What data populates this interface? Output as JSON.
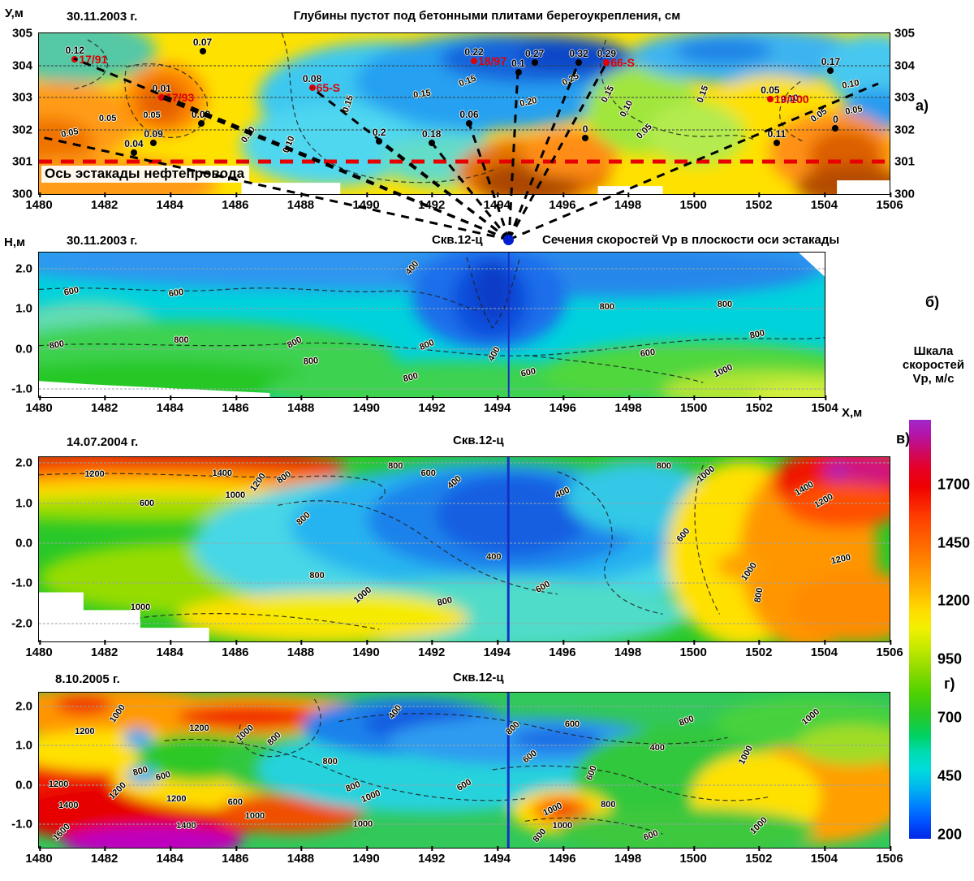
{
  "figure": {
    "colorbar": {
      "title": "Шкала\nскоростей\nVp, м/с",
      "tick_labels": [
        1700,
        1450,
        1200,
        950,
        700,
        450,
        200
      ],
      "top_color": "#a028c8",
      "bottom_color": "#0028e6"
    }
  },
  "chart_data": [
    {
      "type": "contour",
      "marker": "а)",
      "date": "30.11.2003 г.",
      "title": "Глубины пустот под бетонными плитами берегоукрепления, см",
      "ylabel": "У,м",
      "xlim": [
        1480,
        1506
      ],
      "ylim": [
        300,
        305
      ],
      "xticks": [
        1480,
        1482,
        1484,
        1486,
        1488,
        1490,
        1492,
        1494,
        1496,
        1498,
        1500,
        1502,
        1504,
        1506
      ],
      "yticks": [
        305,
        304,
        303,
        302,
        301,
        300
      ],
      "grid_y": [
        304,
        303,
        302
      ],
      "axis_line": {
        "y": 301,
        "label": "Ось эстакады нефтепровода",
        "color": "#e80000"
      },
      "well_point": {
        "name": "Скв.12-ц",
        "x": 1494.35,
        "color": "#0020d0"
      },
      "points": [
        {
          "x": 1481.1,
          "y": 304.2,
          "value": "0.12",
          "well": "17/91",
          "color": "#e00000"
        },
        {
          "x": 1485.0,
          "y": 304.45,
          "value": "0.07"
        },
        {
          "x": 1483.75,
          "y": 303.0,
          "value": "0.01",
          "well": "17/93",
          "color": "#e00000"
        },
        {
          "x": 1488.35,
          "y": 303.3,
          "value": "0.08",
          "well": "65-S",
          "color": "#e00000"
        },
        {
          "x": 1484.95,
          "y": 302.2,
          "value": "0.08"
        },
        {
          "x": 1483.5,
          "y": 301.6,
          "value": "0.09"
        },
        {
          "x": 1482.9,
          "y": 301.3,
          "value": "0.04"
        },
        {
          "x": 1490.4,
          "y": 301.65,
          "value": "0.2"
        },
        {
          "x": 1492.0,
          "y": 301.6,
          "value": "0.18"
        },
        {
          "x": 1493.15,
          "y": 302.2,
          "value": "0.06"
        },
        {
          "x": 1493.3,
          "y": 304.15,
          "value": "0.22",
          "well": "18/97",
          "color": "#e00000"
        },
        {
          "x": 1494.65,
          "y": 303.8,
          "value": "0.1"
        },
        {
          "x": 1495.15,
          "y": 304.1,
          "value": "0.27"
        },
        {
          "x": 1496.5,
          "y": 304.1,
          "value": "0.32"
        },
        {
          "x": 1497.35,
          "y": 304.1,
          "value": "0.29",
          "well": "66-S",
          "color": "#e00000"
        },
        {
          "x": 1496.7,
          "y": 301.75,
          "value": "0"
        },
        {
          "x": 1502.35,
          "y": 302.95,
          "value": "0.05",
          "well": "19/100",
          "color": "#e00000"
        },
        {
          "x": 1504.2,
          "y": 303.85,
          "value": "0.17"
        },
        {
          "x": 1502.55,
          "y": 301.6,
          "value": "0.11"
        },
        {
          "x": 1504.35,
          "y": 302.05,
          "value": "0"
        }
      ],
      "contour_labels": [
        {
          "x": 1482.1,
          "y": 302.35,
          "label": "0.05"
        },
        {
          "x": 1480.95,
          "y": 301.9,
          "label": "0.05",
          "rot": -12
        },
        {
          "x": 1483.45,
          "y": 302.45,
          "label": "0.05"
        },
        {
          "x": 1486.4,
          "y": 301.85,
          "label": "0.10",
          "rot": -55
        },
        {
          "x": 1487.65,
          "y": 301.55,
          "label": "0.10",
          "rot": -68
        },
        {
          "x": 1489.45,
          "y": 302.8,
          "label": "0.15",
          "rot": -72
        },
        {
          "x": 1491.7,
          "y": 303.1,
          "label": "0.15",
          "rot": -8
        },
        {
          "x": 1493.1,
          "y": 303.5,
          "label": "0.15",
          "rot": -20
        },
        {
          "x": 1494.95,
          "y": 302.85,
          "label": "0.20",
          "rot": -12
        },
        {
          "x": 1496.25,
          "y": 303.55,
          "label": "0.25",
          "rot": -28
        },
        {
          "x": 1497.4,
          "y": 303.1,
          "label": "0.15",
          "rot": -62
        },
        {
          "x": 1497.95,
          "y": 302.65,
          "label": "0.10",
          "rot": -62
        },
        {
          "x": 1498.5,
          "y": 301.95,
          "label": "0.05",
          "rot": -45
        },
        {
          "x": 1500.3,
          "y": 303.1,
          "label": "0.15",
          "rot": -70
        },
        {
          "x": 1502.95,
          "y": 302.95,
          "label": "0.10",
          "rot": -8
        },
        {
          "x": 1503.85,
          "y": 302.45,
          "label": "0.05",
          "rot": -35
        },
        {
          "x": 1504.8,
          "y": 303.4,
          "label": "0.10",
          "rot": -10
        },
        {
          "x": 1504.9,
          "y": 302.6,
          "label": "0.05",
          "rot": -10
        }
      ]
    },
    {
      "type": "contour",
      "marker": "б)",
      "date": "30.11.2003 г.",
      "section_title": "Сечения скоростей Vp в плоскости оси эстакады",
      "ylabel": "Н,м",
      "xlabel": "Х,м",
      "well": {
        "name": "Скв.12-ц",
        "x": 1494.35
      },
      "xlim": [
        1480,
        1504
      ],
      "ylim": [
        -1.2,
        2.4
      ],
      "xticks": [
        1480,
        1482,
        1484,
        1486,
        1488,
        1490,
        1492,
        1494,
        1496,
        1498,
        1500,
        1502,
        1504
      ],
      "yticks": [
        "2.0",
        "1.0",
        "0.0",
        "-1.0"
      ],
      "contour_labels": [
        {
          "x": 1481.0,
          "y": 1.42,
          "label": "600",
          "rot": -12
        },
        {
          "x": 1484.2,
          "y": 1.38,
          "label": "600",
          "rot": -8
        },
        {
          "x": 1491.4,
          "y": 2.02,
          "label": "400",
          "rot": -50
        },
        {
          "x": 1480.55,
          "y": 0.1,
          "label": "800",
          "rot": -10
        },
        {
          "x": 1484.35,
          "y": 0.22,
          "label": "800"
        },
        {
          "x": 1487.8,
          "y": 0.15,
          "label": "800",
          "rot": -28
        },
        {
          "x": 1488.3,
          "y": -0.3,
          "label": "800",
          "rot": -5
        },
        {
          "x": 1491.35,
          "y": -0.72,
          "label": "800",
          "rot": -15
        },
        {
          "x": 1491.85,
          "y": 0.1,
          "label": "800",
          "rot": -22
        },
        {
          "x": 1493.9,
          "y": -0.12,
          "label": "400",
          "rot": -60
        },
        {
          "x": 1494.95,
          "y": -0.6,
          "label": "600",
          "rot": -12
        },
        {
          "x": 1497.35,
          "y": 1.05,
          "label": "800"
        },
        {
          "x": 1500.95,
          "y": 1.1,
          "label": "800"
        },
        {
          "x": 1501.95,
          "y": 0.35,
          "label": "800",
          "rot": -12
        },
        {
          "x": 1498.6,
          "y": -0.1,
          "label": "600",
          "rot": -8
        },
        {
          "x": 1500.9,
          "y": -0.55,
          "label": "1000",
          "rot": -25
        }
      ]
    },
    {
      "type": "contour",
      "marker": "в)",
      "date": "14.07.2004 г.",
      "well": {
        "name": "Скв.12-ц",
        "x": 1494.35
      },
      "xlim": [
        1480,
        1506
      ],
      "ylim": [
        -2.45,
        2.15
      ],
      "xticks": [
        1480,
        1482,
        1484,
        1486,
        1488,
        1490,
        1492,
        1494,
        1496,
        1498,
        1500,
        1502,
        1504,
        1506
      ],
      "yticks": [
        "2.0",
        "1.0",
        "0.0",
        "-1.0",
        "-2.0"
      ],
      "contour_labels": [
        {
          "x": 1481.7,
          "y": 1.72,
          "label": "1200"
        },
        {
          "x": 1485.6,
          "y": 1.75,
          "label": "1400"
        },
        {
          "x": 1486.7,
          "y": 1.52,
          "label": "1200",
          "rot": -55
        },
        {
          "x": 1486.0,
          "y": 1.2,
          "label": "1000"
        },
        {
          "x": 1483.3,
          "y": 1.0,
          "label": "600"
        },
        {
          "x": 1487.5,
          "y": 1.65,
          "label": "800",
          "rot": -35
        },
        {
          "x": 1490.9,
          "y": 1.92,
          "label": "800"
        },
        {
          "x": 1491.9,
          "y": 1.75,
          "label": "600"
        },
        {
          "x": 1492.7,
          "y": 1.52,
          "label": "400",
          "rot": -40
        },
        {
          "x": 1488.1,
          "y": 0.6,
          "label": "800",
          "rot": -42
        },
        {
          "x": 1496.0,
          "y": 1.25,
          "label": "400",
          "rot": -25
        },
        {
          "x": 1493.9,
          "y": -0.35,
          "label": "400"
        },
        {
          "x": 1488.5,
          "y": -0.8,
          "label": "800"
        },
        {
          "x": 1489.9,
          "y": -1.3,
          "label": "1000",
          "rot": -40
        },
        {
          "x": 1483.1,
          "y": -1.6,
          "label": "1000"
        },
        {
          "x": 1492.4,
          "y": -1.45,
          "label": "800",
          "rot": -12
        },
        {
          "x": 1495.4,
          "y": -1.1,
          "label": "600",
          "rot": -30
        },
        {
          "x": 1499.1,
          "y": 1.92,
          "label": "800"
        },
        {
          "x": 1500.4,
          "y": 1.72,
          "label": "1000",
          "rot": -40
        },
        {
          "x": 1499.7,
          "y": 0.2,
          "label": "600",
          "rot": -50
        },
        {
          "x": 1501.7,
          "y": -0.7,
          "label": "1000",
          "rot": -55
        },
        {
          "x": 1502.0,
          "y": -1.3,
          "label": "800",
          "rot": -80
        },
        {
          "x": 1503.4,
          "y": 1.35,
          "label": "1400",
          "rot": -30
        },
        {
          "x": 1504.0,
          "y": 1.05,
          "label": "1200",
          "rot": -30
        },
        {
          "x": 1504.5,
          "y": -0.4,
          "label": "1200",
          "rot": -12
        }
      ]
    },
    {
      "type": "contour",
      "marker": "г)",
      "date": "8.10.2005 г.",
      "well": {
        "name": "Скв.12-ц",
        "x": 1494.35
      },
      "xlim": [
        1480,
        1506
      ],
      "ylim": [
        -1.6,
        2.35
      ],
      "xticks": [
        1480,
        1482,
        1484,
        1486,
        1488,
        1490,
        1492,
        1494,
        1496,
        1498,
        1500,
        1502,
        1504,
        1506
      ],
      "yticks": [
        "2.0",
        "1.0",
        "0.0",
        "-1.0"
      ],
      "contour_labels": [
        {
          "x": 1481.4,
          "y": 1.35,
          "label": "1200"
        },
        {
          "x": 1482.4,
          "y": 1.82,
          "label": "1000",
          "rot": -55
        },
        {
          "x": 1484.9,
          "y": 1.45,
          "label": "1200"
        },
        {
          "x": 1486.3,
          "y": 1.32,
          "label": "1000",
          "rot": -42
        },
        {
          "x": 1487.2,
          "y": 1.18,
          "label": "800",
          "rot": -45
        },
        {
          "x": 1490.9,
          "y": 1.85,
          "label": "400",
          "rot": -52
        },
        {
          "x": 1488.9,
          "y": 0.6,
          "label": "800"
        },
        {
          "x": 1483.1,
          "y": 0.35,
          "label": "800",
          "rot": -15
        },
        {
          "x": 1483.8,
          "y": 0.22,
          "label": "600",
          "rot": -15
        },
        {
          "x": 1480.6,
          "y": 0.02,
          "label": "1200"
        },
        {
          "x": 1482.4,
          "y": -0.15,
          "label": "1200",
          "rot": -45
        },
        {
          "x": 1484.2,
          "y": -0.35,
          "label": "1200"
        },
        {
          "x": 1486.0,
          "y": -0.45,
          "label": "600"
        },
        {
          "x": 1486.6,
          "y": -0.8,
          "label": "1000"
        },
        {
          "x": 1480.9,
          "y": -0.52,
          "label": "1400"
        },
        {
          "x": 1484.5,
          "y": -1.05,
          "label": "1400"
        },
        {
          "x": 1480.7,
          "y": -1.2,
          "label": "1600",
          "rot": -45
        },
        {
          "x": 1489.6,
          "y": -0.05,
          "label": "800",
          "rot": -22
        },
        {
          "x": 1490.15,
          "y": -0.3,
          "label": "1000",
          "rot": -22
        },
        {
          "x": 1489.9,
          "y": -1.0,
          "label": "1000"
        },
        {
          "x": 1493.0,
          "y": 0.0,
          "label": "600",
          "rot": -30
        },
        {
          "x": 1494.5,
          "y": 1.45,
          "label": "800",
          "rot": -45
        },
        {
          "x": 1496.3,
          "y": 1.55,
          "label": "600"
        },
        {
          "x": 1498.9,
          "y": 0.95,
          "label": "400"
        },
        {
          "x": 1495.0,
          "y": 0.72,
          "label": "600",
          "rot": -38
        },
        {
          "x": 1496.9,
          "y": 0.3,
          "label": "600",
          "rot": -70
        },
        {
          "x": 1497.4,
          "y": -0.5,
          "label": "800"
        },
        {
          "x": 1495.7,
          "y": -0.62,
          "label": "1000",
          "rot": -25
        },
        {
          "x": 1496.0,
          "y": -1.05,
          "label": "1000"
        },
        {
          "x": 1495.3,
          "y": -1.3,
          "label": "800",
          "rot": -50
        },
        {
          "x": 1498.7,
          "y": -1.3,
          "label": "600",
          "rot": -20
        },
        {
          "x": 1499.8,
          "y": 1.62,
          "label": "800",
          "rot": -20
        },
        {
          "x": 1501.6,
          "y": 0.75,
          "label": "1000",
          "rot": -62
        },
        {
          "x": 1502.0,
          "y": -1.05,
          "label": "1000",
          "rot": -45
        },
        {
          "x": 1503.6,
          "y": 1.72,
          "label": "1000",
          "rot": -40
        }
      ]
    }
  ]
}
